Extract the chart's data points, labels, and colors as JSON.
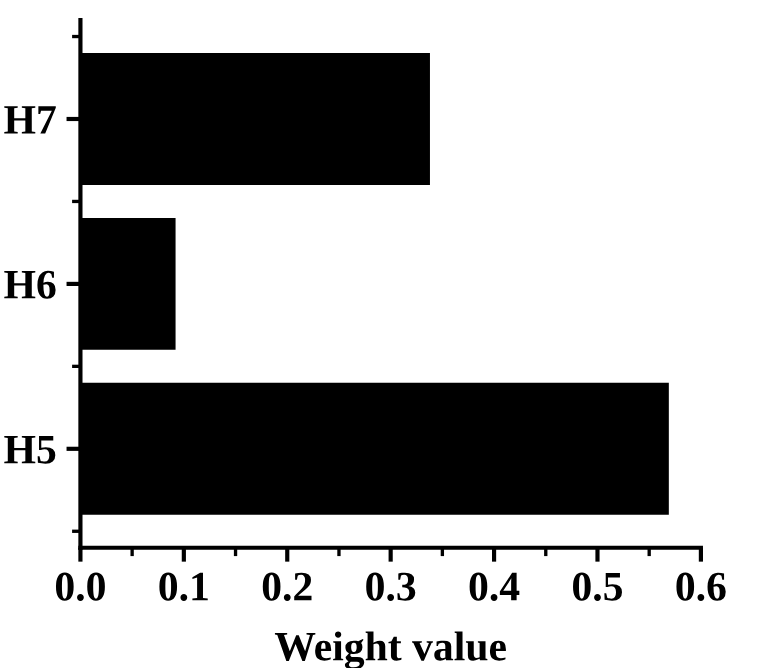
{
  "chart_data": {
    "type": "bar",
    "orientation": "horizontal",
    "xlabel": "Weight value",
    "categories": [
      "H7",
      "H6",
      "H5"
    ],
    "values": [
      0.338,
      0.092,
      0.569
    ],
    "color": "#000000",
    "xlim": [
      0,
      0.6
    ],
    "xticks": [
      {
        "value": 0,
        "label": "0.0"
      },
      {
        "value": 0.05,
        "label": null
      },
      {
        "value": 0.1,
        "label": "0.1"
      },
      {
        "value": 0.15,
        "label": null
      },
      {
        "value": 0.2,
        "label": "0.2"
      },
      {
        "value": 0.25,
        "label": null
      },
      {
        "value": 0.3,
        "label": "0.3"
      },
      {
        "value": 0.35,
        "label": null
      },
      {
        "value": 0.4,
        "label": "0.4"
      },
      {
        "value": 0.45,
        "label": null
      },
      {
        "value": 0.5,
        "label": "0.5"
      },
      {
        "value": 0.55,
        "label": null
      },
      {
        "value": 0.6,
        "label": "0.6"
      }
    ],
    "grid": false,
    "legend": false
  }
}
